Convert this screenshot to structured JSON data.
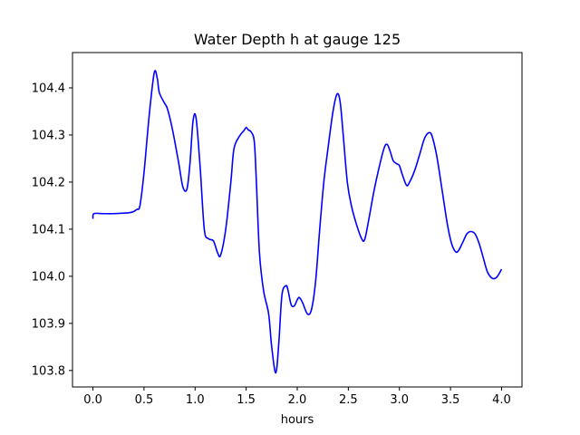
{
  "chart_data": {
    "type": "line",
    "title": "Water Depth h at gauge 125",
    "xlabel": "hours",
    "ylabel": "",
    "xlim": [
      -0.2,
      4.2
    ],
    "ylim": [
      103.765,
      104.475
    ],
    "xticks": [
      0.0,
      0.5,
      1.0,
      1.5,
      2.0,
      2.5,
      3.0,
      3.5,
      4.0
    ],
    "xtick_labels": [
      "0.0",
      "0.5",
      "1.0",
      "1.5",
      "2.0",
      "2.5",
      "3.0",
      "3.5",
      "4.0"
    ],
    "yticks": [
      103.8,
      103.9,
      104.0,
      104.1,
      104.2,
      104.3,
      104.4
    ],
    "ytick_labels": [
      "103.8",
      "103.9",
      "104.0",
      "104.1",
      "104.2",
      "104.3",
      "104.4"
    ],
    "grid": false,
    "series": [
      {
        "color": "#0000ff",
        "x": [
          0.0,
          0.01,
          0.1,
          0.2,
          0.3,
          0.38,
          0.43,
          0.46,
          0.5,
          0.55,
          0.6,
          0.63,
          0.65,
          0.7,
          0.73,
          0.78,
          0.84,
          0.88,
          0.92,
          0.95,
          0.98,
          1.01,
          1.05,
          1.09,
          1.13,
          1.18,
          1.22,
          1.25,
          1.3,
          1.35,
          1.38,
          1.43,
          1.48,
          1.5,
          1.52,
          1.55,
          1.58,
          1.6,
          1.63,
          1.67,
          1.72,
          1.75,
          1.79,
          1.82,
          1.85,
          1.89,
          1.91,
          1.94,
          1.97,
          2.0,
          2.02,
          2.05,
          2.1,
          2.14,
          2.18,
          2.22,
          2.26,
          2.3,
          2.35,
          2.39,
          2.42,
          2.45,
          2.49,
          2.53,
          2.58,
          2.63,
          2.66,
          2.7,
          2.75,
          2.8,
          2.85,
          2.88,
          2.91,
          2.94,
          2.98,
          3.0,
          3.03,
          3.07,
          3.1,
          3.15,
          3.2,
          3.25,
          3.3,
          3.33,
          3.37,
          3.42,
          3.47,
          3.51,
          3.55,
          3.58,
          3.62,
          3.66,
          3.7,
          3.74,
          3.78,
          3.82,
          3.86,
          3.9,
          3.93,
          3.96,
          4.0
        ],
        "y": [
          104.122,
          104.133,
          104.133,
          104.133,
          104.134,
          104.136,
          104.142,
          104.15,
          104.22,
          104.34,
          104.432,
          104.42,
          104.39,
          104.368,
          104.355,
          104.31,
          104.24,
          104.19,
          104.185,
          104.24,
          104.33,
          104.335,
          104.23,
          104.1,
          104.08,
          104.075,
          104.05,
          104.045,
          104.1,
          104.2,
          104.27,
          104.296,
          104.31,
          104.316,
          104.311,
          104.306,
          104.285,
          104.2,
          104.05,
          103.97,
          103.92,
          103.85,
          103.795,
          103.86,
          103.96,
          103.98,
          103.97,
          103.94,
          103.937,
          103.95,
          103.955,
          103.945,
          103.92,
          103.93,
          103.99,
          104.1,
          104.2,
          104.27,
          104.35,
          104.387,
          104.37,
          104.3,
          104.2,
          104.15,
          104.11,
          104.08,
          104.078,
          104.12,
          104.18,
          104.23,
          104.272,
          104.28,
          104.265,
          104.245,
          104.238,
          104.235,
          104.215,
          104.193,
          104.2,
          104.225,
          104.26,
          104.295,
          104.305,
          104.29,
          104.25,
          104.18,
          104.11,
          104.07,
          104.052,
          104.055,
          104.072,
          104.09,
          104.095,
          104.09,
          104.07,
          104.04,
          104.01,
          103.997,
          103.995,
          104.0,
          104.015
        ]
      }
    ]
  }
}
